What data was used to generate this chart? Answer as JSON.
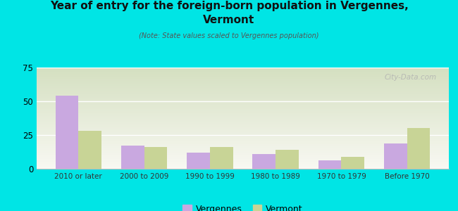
{
  "title_line1": "Year of entry for the foreign-born population in Vergennes,",
  "title_line2": "Vermont",
  "subtitle": "(Note: State values scaled to Vergennes population)",
  "categories": [
    "2010 or later",
    "2000 to 2009",
    "1990 to 1999",
    "1980 to 1989",
    "1970 to 1979",
    "Before 1970"
  ],
  "vergennes_values": [
    54,
    17,
    12,
    11,
    6,
    19
  ],
  "vermont_values": [
    28,
    16,
    16,
    14,
    9,
    30
  ],
  "vergennes_color": "#c9a8e0",
  "vermont_color": "#c8d496",
  "background_color": "#00e5e5",
  "gradient_top": "#d4dfc0",
  "gradient_bottom": "#f8f8f2",
  "ylim": [
    0,
    75
  ],
  "yticks": [
    0,
    25,
    50,
    75
  ],
  "bar_width": 0.35,
  "watermark": "City-Data.com",
  "legend_vergennes": "Vergennes",
  "legend_vermont": "Vermont"
}
